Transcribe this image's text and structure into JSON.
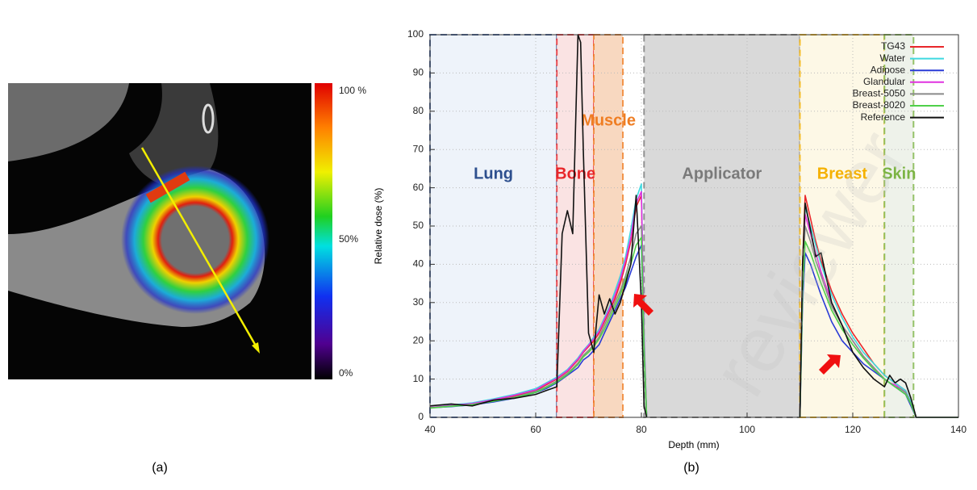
{
  "figure_a": {
    "colorbar_labels": [
      "100 %",
      "50%",
      "0%"
    ],
    "caption": "(a)"
  },
  "watermark": "reviewer",
  "chart_data": {
    "type": "line",
    "caption": "(b)",
    "xlabel": "Depth (mm)",
    "ylabel": "Relative dose (%)",
    "xlim": [
      40,
      140
    ],
    "xticks": [
      40,
      60,
      80,
      100,
      120,
      140
    ],
    "ylim": [
      0,
      100
    ],
    "yticks": [
      0,
      10,
      20,
      30,
      40,
      50,
      60,
      70,
      80,
      90,
      100
    ],
    "grid": true,
    "legend": "top-right",
    "regions": [
      {
        "name": "Lung",
        "start": 40,
        "end": 64,
        "color": "#2d4f8e",
        "fill": "#eef3fa"
      },
      {
        "name": "Bone",
        "start": 64,
        "end": 71,
        "color": "#e8262a",
        "fill": "#fae3e3"
      },
      {
        "name": "Muscle",
        "start": 71,
        "end": 76.5,
        "color": "#ef7d22",
        "fill": "#f8d8c0"
      },
      {
        "name": "Applicator",
        "start": 80.5,
        "end": 110,
        "color": "#7a7a7a",
        "fill": "#d9d9d9"
      },
      {
        "name": "Breast",
        "start": 110,
        "end": 126,
        "color": "#f5b100",
        "fill": "#fdf8e6"
      },
      {
        "name": "Skin",
        "start": 126,
        "end": 131.5,
        "color": "#7cb444",
        "fill": "#eef2ea"
      }
    ],
    "x": [
      40,
      44,
      48,
      52,
      56,
      60,
      62,
      64,
      65,
      66,
      67,
      68,
      68.5,
      69,
      70,
      71,
      72,
      73,
      74,
      75,
      76,
      77,
      78,
      79,
      80,
      80.5,
      81,
      95,
      110,
      110.5,
      111,
      112,
      113,
      114,
      116,
      118,
      120,
      122,
      124,
      126,
      127,
      128,
      129,
      130,
      131,
      132,
      136,
      140
    ],
    "series": [
      {
        "name": "TG43",
        "color": "#e8262a",
        "values": [
          2.5,
          3,
          3.5,
          4.5,
          5.5,
          7,
          8.5,
          10,
          11,
          12,
          13.5,
          15,
          16,
          17,
          18.5,
          20,
          22,
          25,
          28,
          31,
          35,
          40,
          46,
          55,
          58,
          20,
          0,
          null,
          0,
          40,
          58,
          52,
          46,
          41,
          33,
          27,
          22,
          18,
          14,
          11,
          10,
          9,
          8,
          7,
          4,
          0,
          0,
          0
        ]
      },
      {
        "name": "Water",
        "color": "#3fd9e0",
        "values": [
          2.5,
          3.2,
          3.8,
          4.8,
          6,
          7.5,
          9,
          10.5,
          11.5,
          12.5,
          14,
          15.5,
          16.5,
          17.5,
          19,
          21,
          23,
          26,
          29,
          33,
          37,
          42,
          49,
          57,
          61,
          22,
          0,
          null,
          0,
          38,
          55,
          50,
          45,
          40,
          32,
          26,
          21,
          17,
          14,
          11,
          10,
          9,
          8,
          7,
          4,
          0,
          0,
          0
        ]
      },
      {
        "name": "Adipose",
        "color": "#2a3bd6",
        "values": [
          2.5,
          2.8,
          3.3,
          4,
          5,
          6.5,
          7.5,
          9,
          10,
          11,
          12,
          13,
          14,
          15,
          16,
          17.5,
          19,
          22,
          25,
          28,
          31,
          34,
          38,
          42,
          45,
          18,
          0,
          null,
          0,
          30,
          43,
          40,
          36,
          32,
          25,
          20,
          17,
          14,
          12,
          10,
          9,
          8,
          7,
          6,
          3,
          0,
          0,
          0
        ]
      },
      {
        "name": "Glandular",
        "color": "#e032e0",
        "values": [
          2.6,
          3.1,
          3.6,
          4.6,
          5.8,
          7.2,
          8.8,
          10.2,
          11.2,
          12.2,
          13.8,
          15.2,
          16.2,
          17.2,
          18.8,
          20.5,
          22.5,
          25.5,
          28.5,
          32,
          36,
          41,
          47,
          56,
          59,
          21,
          0,
          null,
          0,
          38,
          53,
          48,
          43,
          38,
          30,
          24,
          20,
          16,
          13,
          10,
          9,
          8.5,
          7.5,
          6.5,
          3.5,
          0,
          0,
          0
        ]
      },
      {
        "name": "Breast-5050",
        "color": "#8a8a8a",
        "values": [
          2.5,
          3,
          3.4,
          4.3,
          5.3,
          6.8,
          8,
          9.5,
          10.5,
          11.5,
          12.8,
          14.2,
          15.2,
          16.2,
          17.5,
          19,
          21,
          24,
          27,
          30,
          33,
          37,
          42,
          48,
          50,
          19,
          0,
          null,
          0,
          36,
          50,
          46,
          41,
          37,
          29,
          24,
          20,
          16,
          13,
          10,
          9,
          8,
          7.5,
          6.5,
          3.5,
          0,
          0,
          0
        ]
      },
      {
        "name": "Breast-8020",
        "color": "#4fd04a",
        "values": [
          2.4,
          2.9,
          3.3,
          4.2,
          5.1,
          6.5,
          7.8,
          9.2,
          10.2,
          11.2,
          12.5,
          13.8,
          14.8,
          15.8,
          17,
          18.5,
          20.5,
          23,
          26,
          29,
          32,
          36,
          40,
          45,
          47,
          18,
          0,
          null,
          0,
          33,
          46,
          43,
          39,
          35,
          28,
          23,
          19,
          15.5,
          12.5,
          10,
          9,
          8,
          7,
          6,
          3.5,
          0,
          0,
          0
        ]
      },
      {
        "name": "Reference",
        "color": "#111111",
        "values": [
          3,
          3.5,
          3,
          4.5,
          5,
          6,
          7,
          8,
          48,
          54,
          48,
          100,
          98,
          70,
          22,
          17,
          32,
          27,
          31,
          27,
          30,
          35,
          40,
          58,
          30,
          3,
          0,
          null,
          0,
          40,
          56,
          49,
          42,
          43,
          30,
          24,
          17,
          13,
          10,
          8,
          11,
          9,
          10,
          9,
          5,
          0,
          0,
          0
        ]
      }
    ]
  }
}
